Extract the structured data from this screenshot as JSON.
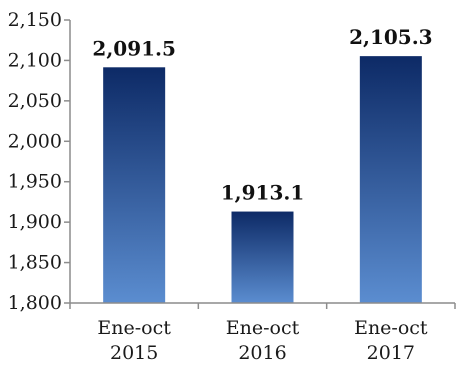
{
  "chart_data": {
    "type": "bar",
    "categories": [
      [
        "Ene-oct",
        "2015"
      ],
      [
        "Ene-oct",
        "2016"
      ],
      [
        "Ene-oct",
        "2017"
      ]
    ],
    "values": [
      2091.5,
      1913.1,
      2105.3
    ],
    "data_labels": [
      "2,091.5",
      "1,913.1",
      "2,105.3"
    ],
    "y_ticks": [
      1800,
      1850,
      1900,
      1950,
      2000,
      2050,
      2100,
      2150
    ],
    "y_tick_labels": [
      "1,800",
      "1,850",
      "1,900",
      "1,950",
      "2,000",
      "2,050",
      "2,100",
      "2,150"
    ],
    "ylim": [
      1800,
      2150
    ],
    "grid": false,
    "legend": "none",
    "title": "",
    "xlabel": "",
    "ylabel": "",
    "colors": {
      "bar_top": "#0d2a66",
      "bar_bottom": "#5b8dd0",
      "axis": "#8c8c8c"
    }
  }
}
